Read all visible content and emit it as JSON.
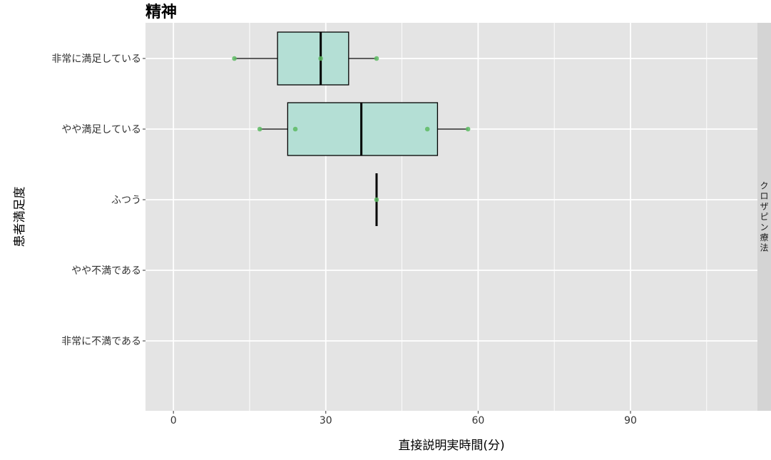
{
  "chart_data": {
    "type": "boxplot",
    "orientation": "horizontal",
    "title": "精神",
    "xlabel": "直接説明実時間(分)",
    "ylabel": "患者満足度",
    "facet_label": "クロザピン療法",
    "xlim": [
      -5.5,
      115
    ],
    "x_ticks": [
      0,
      30,
      60,
      90
    ],
    "x_minor_ticks": [
      15,
      45,
      75,
      105
    ],
    "categories": [
      "非常に満足している",
      "やや満足している",
      "ふつう",
      "やや不満である",
      "非常に不満である"
    ],
    "boxes": [
      {
        "category": "非常に満足している",
        "min": 12,
        "q1": 20.5,
        "median": 29,
        "q3": 34.5,
        "max": 40,
        "points": [
          12,
          29,
          40
        ]
      },
      {
        "category": "やや満足している",
        "min": 17,
        "q1": 22.5,
        "median": 37,
        "q3": 52,
        "max": 58,
        "points": [
          17,
          24,
          50,
          58
        ]
      },
      {
        "category": "ふつう",
        "min": 40,
        "q1": 40,
        "median": 40,
        "q3": 40,
        "max": 40,
        "points": [
          40
        ]
      }
    ],
    "colors": {
      "panel_bg": "#e4e4e4",
      "grid": "#ffffff",
      "box_fill": "#b4dfd5",
      "box_stroke": "#000000",
      "point": "#5dbb63",
      "strip_bg": "#d4d4d4"
    },
    "grid": true,
    "legend": "none"
  }
}
